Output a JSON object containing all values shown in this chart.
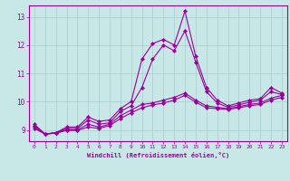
{
  "xlabel": "Windchill (Refroidissement éolien,°C)",
  "background_color": "#c8e8e8",
  "line_color": "#990099",
  "grid_color": "#aacccc",
  "xlim": [
    -0.5,
    23.5
  ],
  "ylim": [
    8.6,
    13.4
  ],
  "yticks": [
    9,
    10,
    11,
    12,
    13
  ],
  "xticks": [
    0,
    1,
    2,
    3,
    4,
    5,
    6,
    7,
    8,
    9,
    10,
    11,
    12,
    13,
    14,
    15,
    16,
    17,
    18,
    19,
    20,
    21,
    22,
    23
  ],
  "series": [
    [
      9.2,
      8.85,
      8.9,
      9.1,
      9.1,
      9.45,
      9.3,
      9.35,
      9.75,
      10.0,
      11.5,
      12.05,
      12.2,
      12.0,
      13.2,
      11.6,
      10.5,
      10.05,
      9.85,
      9.95,
      10.05,
      10.1,
      10.5,
      10.3
    ],
    [
      9.15,
      8.85,
      8.9,
      9.05,
      9.05,
      9.35,
      9.2,
      9.25,
      9.65,
      9.85,
      10.5,
      11.5,
      12.0,
      11.8,
      12.5,
      11.4,
      10.35,
      9.95,
      9.8,
      9.88,
      9.98,
      10.05,
      10.35,
      10.25
    ],
    [
      9.1,
      8.85,
      8.9,
      9.0,
      9.0,
      9.2,
      9.1,
      9.2,
      9.5,
      9.7,
      9.9,
      9.95,
      10.05,
      10.15,
      10.3,
      10.05,
      9.85,
      9.8,
      9.75,
      9.82,
      9.9,
      9.95,
      10.12,
      10.22
    ],
    [
      9.05,
      8.85,
      8.88,
      8.98,
      8.98,
      9.1,
      9.05,
      9.15,
      9.4,
      9.6,
      9.78,
      9.88,
      9.95,
      10.05,
      10.22,
      9.98,
      9.78,
      9.75,
      9.72,
      9.78,
      9.85,
      9.9,
      10.05,
      10.15
    ]
  ]
}
